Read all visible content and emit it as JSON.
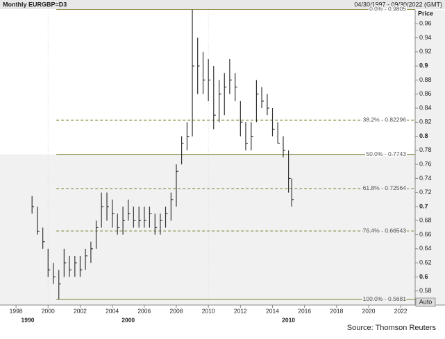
{
  "chart_data": {
    "type": "ohlc",
    "title": "Monthly EURGBP=D3",
    "date_range": "04/30/1997 - 09/30/2022 (GMT)",
    "y_label": "Price",
    "source": "Source: Thomson Reuters",
    "button": "Auto",
    "color": "#333333",
    "x": [
      1999.0,
      1999.33,
      1999.67,
      2000.0,
      2000.33,
      2000.67,
      2001.0,
      2001.33,
      2001.67,
      2002.0,
      2002.33,
      2002.67,
      2003.0,
      2003.33,
      2003.67,
      2004.0,
      2004.33,
      2004.67,
      2005.0,
      2005.33,
      2005.67,
      2006.0,
      2006.33,
      2006.67,
      2007.0,
      2007.33,
      2007.67,
      2008.0,
      2008.33,
      2008.67,
      2009.0,
      2009.33,
      2009.67,
      2010.0,
      2010.33,
      2010.67,
      2011.0,
      2011.33,
      2011.67,
      2012.0,
      2012.33,
      2012.67,
      2013.0,
      2013.33,
      2013.67,
      2014.0,
      2014.33,
      2014.67,
      2015.0,
      2015.2
    ],
    "high": [
      0.715,
      0.7,
      0.67,
      0.64,
      0.62,
      0.61,
      0.64,
      0.63,
      0.63,
      0.63,
      0.64,
      0.65,
      0.68,
      0.72,
      0.72,
      0.71,
      0.69,
      0.7,
      0.71,
      0.7,
      0.7,
      0.7,
      0.7,
      0.69,
      0.69,
      0.7,
      0.72,
      0.76,
      0.8,
      0.82,
      0.98,
      0.94,
      0.92,
      0.91,
      0.9,
      0.88,
      0.89,
      0.91,
      0.89,
      0.85,
      0.82,
      0.82,
      0.88,
      0.87,
      0.86,
      0.84,
      0.82,
      0.8,
      0.78,
      0.74
    ],
    "low": [
      0.69,
      0.66,
      0.64,
      0.6,
      0.59,
      0.568,
      0.6,
      0.6,
      0.6,
      0.6,
      0.61,
      0.62,
      0.64,
      0.67,
      0.68,
      0.67,
      0.66,
      0.66,
      0.68,
      0.67,
      0.67,
      0.67,
      0.67,
      0.66,
      0.66,
      0.67,
      0.68,
      0.7,
      0.76,
      0.78,
      0.8,
      0.86,
      0.86,
      0.85,
      0.81,
      0.82,
      0.83,
      0.86,
      0.85,
      0.8,
      0.78,
      0.78,
      0.82,
      0.84,
      0.83,
      0.8,
      0.79,
      0.77,
      0.72,
      0.7
    ],
    "close": [
      0.7,
      0.665,
      0.65,
      0.61,
      0.6,
      0.59,
      0.62,
      0.61,
      0.62,
      0.61,
      0.63,
      0.64,
      0.67,
      0.7,
      0.7,
      0.69,
      0.67,
      0.68,
      0.69,
      0.68,
      0.68,
      0.68,
      0.69,
      0.67,
      0.68,
      0.69,
      0.71,
      0.75,
      0.79,
      0.8,
      0.9,
      0.9,
      0.88,
      0.88,
      0.83,
      0.86,
      0.87,
      0.88,
      0.87,
      0.82,
      0.79,
      0.8,
      0.86,
      0.85,
      0.84,
      0.81,
      0.79,
      0.78,
      0.74,
      0.71
    ],
    "ylim": [
      0.56,
      0.98
    ],
    "yticks": [
      0.58,
      {
        "value": 0.6,
        "label": "0.6"
      },
      0.62,
      0.64,
      0.66,
      0.68,
      {
        "value": 0.7,
        "label": "0.7"
      },
      0.72,
      0.74,
      0.76,
      0.78,
      {
        "value": 0.8,
        "label": "0.8"
      },
      0.82,
      0.84,
      0.86,
      0.88,
      {
        "value": 0.9,
        "label": "0.9"
      },
      0.92,
      0.94,
      0.96
    ],
    "xlim": [
      1997,
      2022.9
    ],
    "xticks": [
      1998,
      2000,
      2002,
      2004,
      2006,
      2008,
      2010,
      2012,
      2014,
      2016,
      2018,
      2020,
      2022
    ],
    "decades": [
      1990,
      2000,
      2010
    ],
    "levels": [
      {
        "label": "0.0% - 0.9805",
        "value": 0.9805,
        "style": "solid"
      },
      {
        "label": "38.2% - 0.82296",
        "value": 0.82296,
        "style": "dashed"
      },
      {
        "label": "50.0% - 0.7743",
        "value": 0.7743,
        "style": "solid"
      },
      {
        "label": "61.8% - 0.72564",
        "value": 0.72564,
        "style": "dashed"
      },
      {
        "label": "76.4% - 0.66543",
        "value": 0.66543,
        "style": "dashed"
      },
      {
        "label": "100.0% - 0.5681",
        "value": 0.5681,
        "style": "solid"
      }
    ]
  }
}
